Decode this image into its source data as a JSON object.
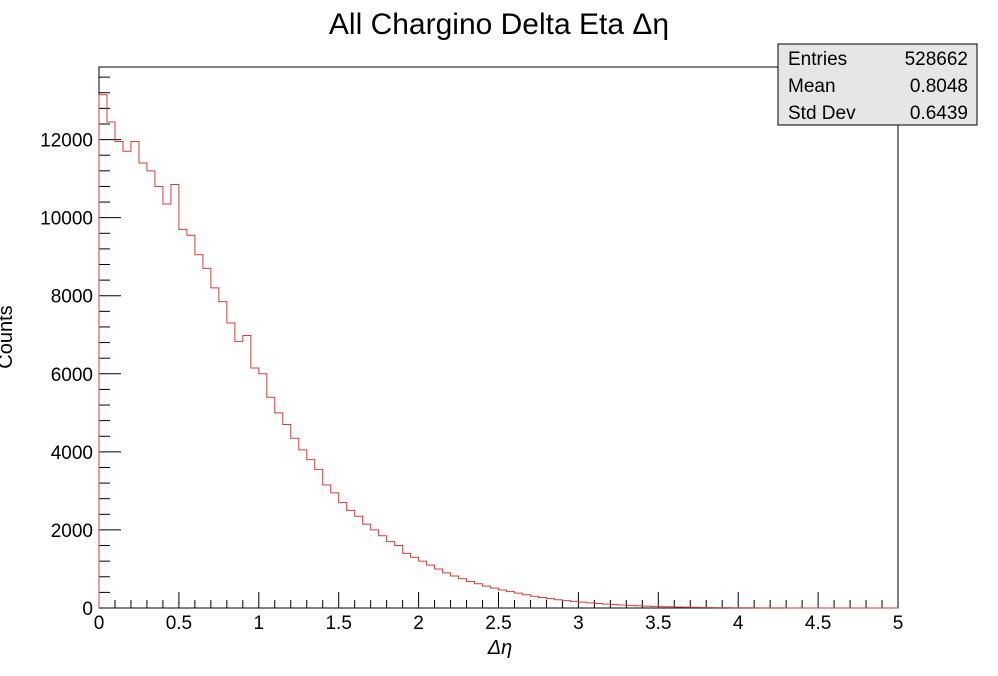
{
  "chart_data": {
    "type": "bar",
    "title": "All Chargino Delta Eta Δη",
    "xlabel": "Δη",
    "ylabel": "Counts",
    "xlim": [
      0,
      5
    ],
    "ylim": [
      0,
      13860
    ],
    "grid": false,
    "line_color": "#d0413e",
    "x_ticks": [
      "0",
      "0.5",
      "1",
      "1.5",
      "2",
      "2.5",
      "3",
      "3.5",
      "4",
      "4.5",
      "5"
    ],
    "y_ticks": [
      "0",
      "2000",
      "4000",
      "6000",
      "8000",
      "10000",
      "12000"
    ],
    "bin_width": 0.05,
    "values": [
      13150,
      12450,
      11950,
      11700,
      11950,
      11400,
      11200,
      10800,
      10350,
      10850,
      9700,
      9550,
      9050,
      8700,
      8200,
      7850,
      7300,
      6830,
      6980,
      6150,
      6000,
      5400,
      5000,
      4700,
      4350,
      4050,
      3800,
      3550,
      3150,
      2950,
      2700,
      2500,
      2350,
      2150,
      2000,
      1850,
      1700,
      1600,
      1400,
      1300,
      1200,
      1100,
      1000,
      900,
      820,
      750,
      680,
      620,
      560,
      510,
      460,
      420,
      380,
      340,
      300,
      270,
      240,
      210,
      190,
      170,
      150,
      130,
      115,
      100,
      88,
      76,
      66,
      57,
      49,
      42,
      36,
      31,
      26,
      22,
      19,
      16,
      13,
      11,
      9,
      7,
      6,
      5,
      4,
      3,
      2,
      2,
      1,
      1,
      1,
      0,
      0,
      0,
      0,
      0,
      0,
      0,
      0,
      0,
      0,
      0
    ]
  },
  "stats_box": {
    "rows": [
      {
        "label": "Entries",
        "value": "528662"
      },
      {
        "label": "Mean",
        "value": "0.8048"
      },
      {
        "label": "Std Dev",
        "value": "0.6439"
      }
    ]
  }
}
